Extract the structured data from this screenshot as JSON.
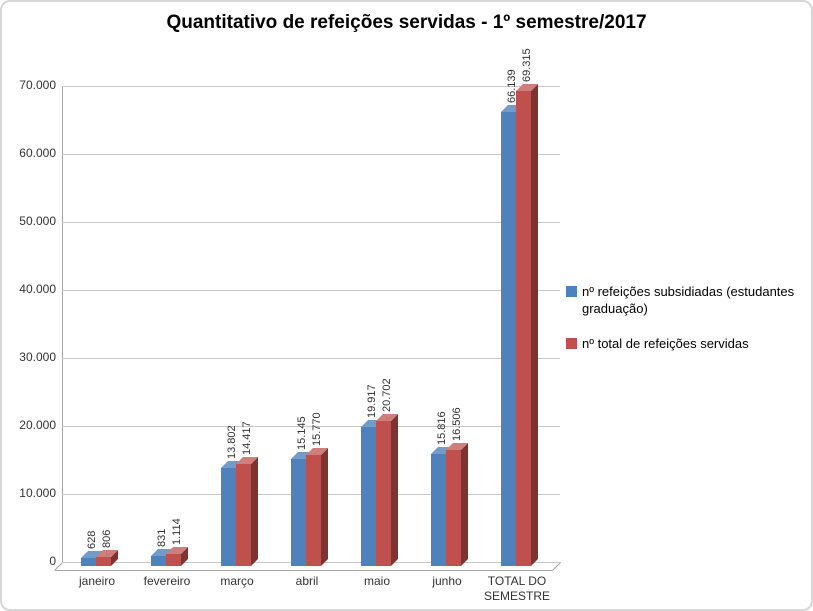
{
  "chart_data": {
    "type": "bar",
    "style": "3d-clustered-column",
    "title": "Quantitativo de refeições servidas - 1º semestre/2017",
    "categories": [
      "janeiro",
      "fevereiro",
      "março",
      "abril",
      "maio",
      "junho",
      "TOTAL DO SEMESTRE"
    ],
    "series": [
      {
        "name": "nº refeições subsidiadas (estudantes graduação)",
        "color": "#4F81BD",
        "color_top": "#729BC9",
        "color_side": "#2E4D75",
        "values": [
          628,
          831,
          13802,
          15145,
          19917,
          15816,
          66139
        ],
        "labels": [
          "628",
          "831",
          "13.802",
          "15.145",
          "19.917",
          "15.816",
          "66.139"
        ]
      },
      {
        "name": "nº total de refeições servidas",
        "color": "#C0504D",
        "color_top": "#D07E7B",
        "color_side": "#7F3330",
        "values": [
          806,
          1114,
          14417,
          15770,
          20702,
          16506,
          69315
        ],
        "labels": [
          "806",
          "1.114",
          "14.417",
          "15.770",
          "20.702",
          "16.506",
          "69.315"
        ]
      }
    ],
    "ylim": [
      0,
      70000
    ],
    "yticks": [
      {
        "value": 0,
        "label": "0"
      },
      {
        "value": 10000,
        "label": "10.000"
      },
      {
        "value": 20000,
        "label": "20.000"
      },
      {
        "value": 30000,
        "label": "30.000"
      },
      {
        "value": 40000,
        "label": "40.000"
      },
      {
        "value": 50000,
        "label": "50.000"
      },
      {
        "value": 60000,
        "label": "60.000"
      },
      {
        "value": 70000,
        "label": "70.000"
      }
    ],
    "gridlines": true,
    "legend_position": "right"
  }
}
